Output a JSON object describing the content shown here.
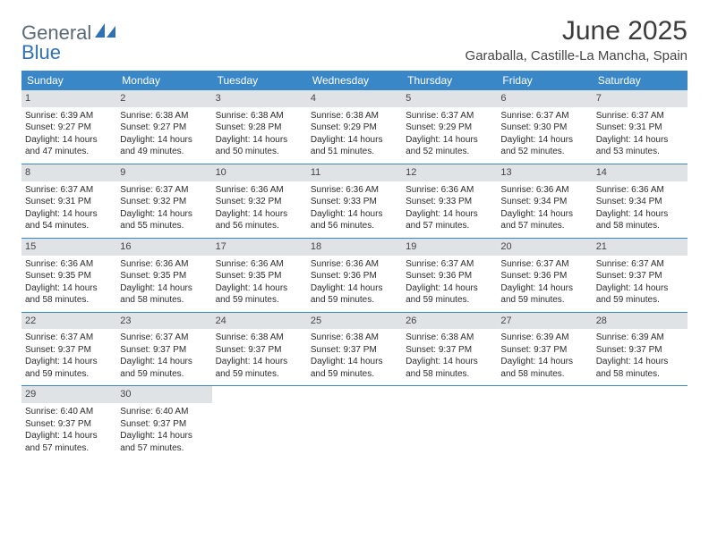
{
  "logo": {
    "text1": "General",
    "text2": "Blue"
  },
  "title": "June 2025",
  "location": "Garaballa, Castille-La Mancha, Spain",
  "colors": {
    "header_bg": "#3a87c8",
    "daynum_bg": "#e0e3e6",
    "week_border": "#3a87c8",
    "logo_gray": "#5a6a77",
    "logo_blue": "#2f71b3"
  },
  "weekdays": [
    "Sunday",
    "Monday",
    "Tuesday",
    "Wednesday",
    "Thursday",
    "Friday",
    "Saturday"
  ],
  "weeks": [
    [
      {
        "n": "1",
        "sr": "6:39 AM",
        "ss": "9:27 PM",
        "dh": "14",
        "dm": "47"
      },
      {
        "n": "2",
        "sr": "6:38 AM",
        "ss": "9:27 PM",
        "dh": "14",
        "dm": "49"
      },
      {
        "n": "3",
        "sr": "6:38 AM",
        "ss": "9:28 PM",
        "dh": "14",
        "dm": "50"
      },
      {
        "n": "4",
        "sr": "6:38 AM",
        "ss": "9:29 PM",
        "dh": "14",
        "dm": "51"
      },
      {
        "n": "5",
        "sr": "6:37 AM",
        "ss": "9:29 PM",
        "dh": "14",
        "dm": "52"
      },
      {
        "n": "6",
        "sr": "6:37 AM",
        "ss": "9:30 PM",
        "dh": "14",
        "dm": "52"
      },
      {
        "n": "7",
        "sr": "6:37 AM",
        "ss": "9:31 PM",
        "dh": "14",
        "dm": "53"
      }
    ],
    [
      {
        "n": "8",
        "sr": "6:37 AM",
        "ss": "9:31 PM",
        "dh": "14",
        "dm": "54"
      },
      {
        "n": "9",
        "sr": "6:37 AM",
        "ss": "9:32 PM",
        "dh": "14",
        "dm": "55"
      },
      {
        "n": "10",
        "sr": "6:36 AM",
        "ss": "9:32 PM",
        "dh": "14",
        "dm": "56"
      },
      {
        "n": "11",
        "sr": "6:36 AM",
        "ss": "9:33 PM",
        "dh": "14",
        "dm": "56"
      },
      {
        "n": "12",
        "sr": "6:36 AM",
        "ss": "9:33 PM",
        "dh": "14",
        "dm": "57"
      },
      {
        "n": "13",
        "sr": "6:36 AM",
        "ss": "9:34 PM",
        "dh": "14",
        "dm": "57"
      },
      {
        "n": "14",
        "sr": "6:36 AM",
        "ss": "9:34 PM",
        "dh": "14",
        "dm": "58"
      }
    ],
    [
      {
        "n": "15",
        "sr": "6:36 AM",
        "ss": "9:35 PM",
        "dh": "14",
        "dm": "58"
      },
      {
        "n": "16",
        "sr": "6:36 AM",
        "ss": "9:35 PM",
        "dh": "14",
        "dm": "58"
      },
      {
        "n": "17",
        "sr": "6:36 AM",
        "ss": "9:35 PM",
        "dh": "14",
        "dm": "59"
      },
      {
        "n": "18",
        "sr": "6:36 AM",
        "ss": "9:36 PM",
        "dh": "14",
        "dm": "59"
      },
      {
        "n": "19",
        "sr": "6:37 AM",
        "ss": "9:36 PM",
        "dh": "14",
        "dm": "59"
      },
      {
        "n": "20",
        "sr": "6:37 AM",
        "ss": "9:36 PM",
        "dh": "14",
        "dm": "59"
      },
      {
        "n": "21",
        "sr": "6:37 AM",
        "ss": "9:37 PM",
        "dh": "14",
        "dm": "59"
      }
    ],
    [
      {
        "n": "22",
        "sr": "6:37 AM",
        "ss": "9:37 PM",
        "dh": "14",
        "dm": "59"
      },
      {
        "n": "23",
        "sr": "6:37 AM",
        "ss": "9:37 PM",
        "dh": "14",
        "dm": "59"
      },
      {
        "n": "24",
        "sr": "6:38 AM",
        "ss": "9:37 PM",
        "dh": "14",
        "dm": "59"
      },
      {
        "n": "25",
        "sr": "6:38 AM",
        "ss": "9:37 PM",
        "dh": "14",
        "dm": "59"
      },
      {
        "n": "26",
        "sr": "6:38 AM",
        "ss": "9:37 PM",
        "dh": "14",
        "dm": "58"
      },
      {
        "n": "27",
        "sr": "6:39 AM",
        "ss": "9:37 PM",
        "dh": "14",
        "dm": "58"
      },
      {
        "n": "28",
        "sr": "6:39 AM",
        "ss": "9:37 PM",
        "dh": "14",
        "dm": "58"
      }
    ],
    [
      {
        "n": "29",
        "sr": "6:40 AM",
        "ss": "9:37 PM",
        "dh": "14",
        "dm": "57"
      },
      {
        "n": "30",
        "sr": "6:40 AM",
        "ss": "9:37 PM",
        "dh": "14",
        "dm": "57"
      },
      null,
      null,
      null,
      null,
      null
    ]
  ],
  "labels": {
    "sunrise": "Sunrise:",
    "sunset": "Sunset:",
    "daylight": "Daylight:",
    "hours": "hours",
    "and": "and",
    "minutes": "minutes."
  }
}
